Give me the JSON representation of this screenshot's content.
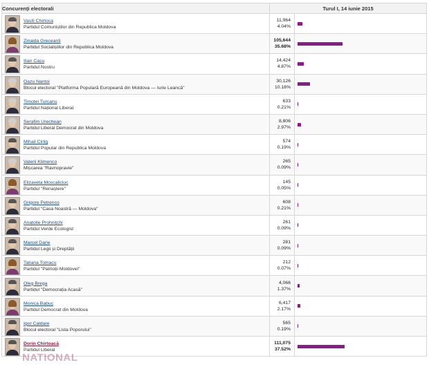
{
  "header": {
    "col_candidates": "Concurenți electorali",
    "col_round": "Turul I, 14 iunie 2015"
  },
  "colors": {
    "bar": "#8b1a8b",
    "link": "#1a4e8a"
  },
  "watermark": "NATIONAL",
  "candidates": [
    {
      "name": "Vasili Chirtoca",
      "party": "Partidul Comuniștilor din Republica Moldova",
      "votes": "11,964",
      "percent": "4.04%",
      "share": 4.04,
      "bold": false,
      "photo": "m"
    },
    {
      "name": "Zinaida Greceanîi",
      "party": "Partidul Socialiștilor din Republica Moldova",
      "votes": "105,644",
      "percent": "35.68%",
      "share": 35.68,
      "bold": true,
      "photo": "f"
    },
    {
      "name": "Ilian Cașu",
      "party": "Partidul Nostru",
      "votes": "14,424",
      "percent": "4.87%",
      "share": 4.87,
      "bold": false,
      "photo": "m"
    },
    {
      "name": "Oazu Nantoi",
      "party": "Blocul electoral \"Platforma Populară Europeană din Moldova — Iurie Leancă\"",
      "votes": "30,126",
      "percent": "10.18%",
      "share": 10.18,
      "bold": false,
      "photo": "g"
    },
    {
      "name": "Timotei Turcanu",
      "party": "Partidul Național Liberal",
      "votes": "633",
      "percent": "0.21%",
      "share": 0.21,
      "bold": false,
      "photo": "g"
    },
    {
      "name": "Serafim Urechean",
      "party": "Partidul Liberal Democrat din Moldova",
      "votes": "8,806",
      "percent": "2.97%",
      "share": 2.97,
      "bold": false,
      "photo": "g"
    },
    {
      "name": "Mihail Cirlig",
      "party": "Partidul Popular din Republica Moldova",
      "votes": "574",
      "percent": "0.19%",
      "share": 0.19,
      "bold": false,
      "photo": "m"
    },
    {
      "name": "Valerii Klimenco",
      "party": "Mișcarea \"Ravnopravie\"",
      "votes": "265",
      "percent": "0.09%",
      "share": 0.09,
      "bold": false,
      "photo": "g"
    },
    {
      "name": "Elizaveta Moscaliciuc",
      "party": "Partidul \"Renaștere\"",
      "votes": "145",
      "percent": "0.05%",
      "share": 0.05,
      "bold": false,
      "photo": "f"
    },
    {
      "name": "Grigore Petrenco",
      "party": "Partidul \"Casa Noastră — Moldova\"",
      "votes": "608",
      "percent": "0.21%",
      "share": 0.21,
      "bold": false,
      "photo": "m"
    },
    {
      "name": "Anatolie Prohnițchi",
      "party": "Partidul Verde Ecologist",
      "votes": "261",
      "percent": "0.09%",
      "share": 0.09,
      "bold": false,
      "photo": "m"
    },
    {
      "name": "Marcel Darie",
      "party": "Partidul Legii și Dreptății",
      "votes": "281",
      "percent": "0.09%",
      "share": 0.09,
      "bold": false,
      "photo": "m"
    },
    {
      "name": "Tatiana Tomacu",
      "party": "Partidul \"Patrioții Moldovei\"",
      "votes": "212",
      "percent": "0.07%",
      "share": 0.07,
      "bold": false,
      "photo": "f"
    },
    {
      "name": "Oleg Brega",
      "party": "Partidul \"Democrația Acasă\"",
      "votes": "4,066",
      "percent": "1.37%",
      "share": 1.37,
      "bold": false,
      "photo": "m"
    },
    {
      "name": "Monica Babuc",
      "party": "Partidul Democrat din Moldova",
      "votes": "6,417",
      "percent": "2.17%",
      "share": 2.17,
      "bold": false,
      "photo": "f"
    },
    {
      "name": "Igor Caldare",
      "party": "Blocul electoral \"Lista Poporului\"",
      "votes": "565",
      "percent": "0.19%",
      "share": 0.19,
      "bold": false,
      "photo": "m"
    },
    {
      "name": "Dorin Chirtoacă",
      "party": "Partidul Liberal",
      "votes": "111,075",
      "percent": "37.52%",
      "share": 37.52,
      "bold": true,
      "photo": "m"
    }
  ]
}
